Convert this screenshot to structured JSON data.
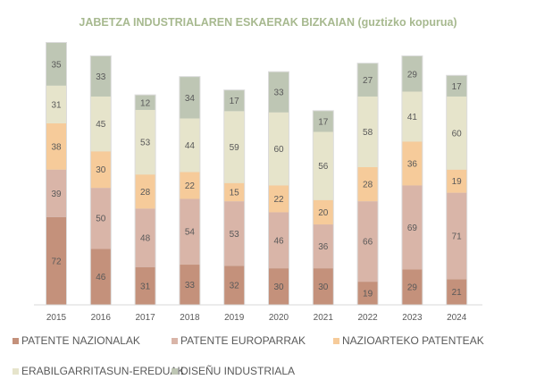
{
  "chart_data": {
    "type": "bar",
    "stacked": true,
    "title": "JABETZA INDUSTRIALAREN ESKAERAK BIZKAIAN",
    "subtitle": "(guztizko kopurua)",
    "xlabel": "",
    "ylabel": "",
    "ylim": [
      0,
      220
    ],
    "grid": false,
    "legend_position": "bottom",
    "categories": [
      "2015",
      "2016",
      "2017",
      "2018",
      "2019",
      "2020",
      "2021",
      "2022",
      "2023",
      "2024"
    ],
    "series": [
      {
        "name": "PATENTE NAZIONALAK",
        "color": "#c4917b",
        "values": [
          72,
          46,
          31,
          33,
          32,
          30,
          30,
          19,
          29,
          21
        ]
      },
      {
        "name": "PATENTE EUROPARRAK",
        "color": "#d9b5a8",
        "values": [
          39,
          50,
          48,
          54,
          53,
          46,
          36,
          66,
          69,
          71
        ]
      },
      {
        "name": "NAZIOARTEKO PATENTEAK",
        "color": "#f6cb9a",
        "values": [
          38,
          30,
          28,
          22,
          15,
          22,
          20,
          28,
          36,
          19
        ]
      },
      {
        "name": "ERABILGARRITASUN-EREDUAK",
        "color": "#e6e4cb",
        "values": [
          31,
          45,
          53,
          44,
          59,
          60,
          56,
          58,
          41,
          60
        ]
      },
      {
        "name": "DISEÑU INDUSTRIALA",
        "color": "#bec6b4",
        "values": [
          35,
          33,
          12,
          34,
          17,
          33,
          17,
          27,
          29,
          17
        ]
      }
    ]
  }
}
